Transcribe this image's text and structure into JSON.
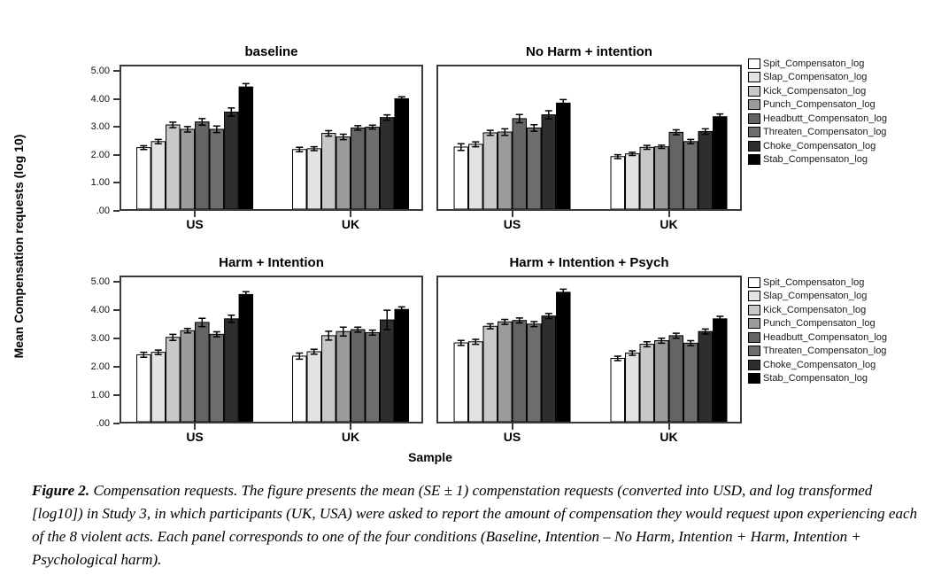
{
  "figure": {
    "y_axis_label": "Mean Compensation requests (log 10)",
    "x_axis_label": "Sample",
    "y_ticks": [
      "5.00",
      "4.00",
      "3.00",
      "2.00",
      "1.00",
      ".00"
    ],
    "groups": [
      "US",
      "UK"
    ],
    "legend": {
      "items": [
        {
          "label": "Spit_Compensaton_log",
          "color": "#ffffff"
        },
        {
          "label": "Slap_Compensaton_log",
          "color": "#e3e3e3"
        },
        {
          "label": "Kick_Compensaton_log",
          "color": "#c8c8c8"
        },
        {
          "label": "Punch_Compensaton_log",
          "color": "#9b9b9b"
        },
        {
          "label": "Headbutt_Compensaton_log",
          "color": "#646464"
        },
        {
          "label": "Threaten_Compensaton_log",
          "color": "#6e6e6e"
        },
        {
          "label": "Choke_Compensaton_log",
          "color": "#2e2e2e"
        },
        {
          "label": "Stab_Compensaton_log",
          "color": "#000000"
        }
      ]
    }
  },
  "chart_data": [
    {
      "type": "bar",
      "title": "baseline",
      "categories": [
        "US",
        "UK"
      ],
      "ylabel": "Mean Compensation requests (log 10)",
      "ylim": [
        0,
        5
      ],
      "yticks": [
        0,
        1,
        2,
        3,
        4,
        5
      ],
      "error_bars": "SE ± 1",
      "series": [
        {
          "name": "Spit_Compensaton_log",
          "values": [
            2.25,
            2.18
          ],
          "se": [
            0.07,
            0.08
          ]
        },
        {
          "name": "Slap_Compensaton_log",
          "values": [
            2.47,
            2.21
          ],
          "se": [
            0.08,
            0.07
          ]
        },
        {
          "name": "Kick_Compensaton_log",
          "values": [
            3.08,
            2.77
          ],
          "se": [
            0.1,
            0.1
          ]
        },
        {
          "name": "Punch_Compensaton_log",
          "values": [
            2.92,
            2.64
          ],
          "se": [
            0.1,
            0.1
          ]
        },
        {
          "name": "Headbutt_Compensaton_log",
          "values": [
            3.19,
            2.97
          ],
          "se": [
            0.12,
            0.08
          ]
        },
        {
          "name": "Threaten_Compensaton_log",
          "values": [
            2.92,
            3.0
          ],
          "se": [
            0.12,
            0.07
          ]
        },
        {
          "name": "Choke_Compensaton_log",
          "values": [
            3.55,
            3.35
          ],
          "se": [
            0.15,
            0.1
          ]
        },
        {
          "name": "Stab_Compensaton_log",
          "values": [
            4.47,
            4.04
          ],
          "se": [
            0.12,
            0.07
          ]
        }
      ]
    },
    {
      "type": "bar",
      "title": "No Harm + intention",
      "categories": [
        "US",
        "UK"
      ],
      "ylabel": "Mean Compensation requests (log 10)",
      "ylim": [
        0,
        5
      ],
      "yticks": [
        0,
        1,
        2,
        3,
        4,
        5
      ],
      "error_bars": "SE ± 1",
      "series": [
        {
          "name": "Spit_Compensaton_log",
          "values": [
            2.27,
            1.92
          ],
          "se": [
            0.12,
            0.07
          ]
        },
        {
          "name": "Slap_Compensaton_log",
          "values": [
            2.37,
            2.02
          ],
          "se": [
            0.09,
            0.06
          ]
        },
        {
          "name": "Kick_Compensaton_log",
          "values": [
            2.79,
            2.26
          ],
          "se": [
            0.09,
            0.07
          ]
        },
        {
          "name": "Punch_Compensaton_log",
          "values": [
            2.82,
            2.28
          ],
          "se": [
            0.12,
            0.06
          ]
        },
        {
          "name": "Headbutt_Compensaton_log",
          "values": [
            3.31,
            2.81
          ],
          "se": [
            0.15,
            0.09
          ]
        },
        {
          "name": "Threaten_Compensaton_log",
          "values": [
            2.97,
            2.47
          ],
          "se": [
            0.12,
            0.08
          ]
        },
        {
          "name": "Choke_Compensaton_log",
          "values": [
            3.45,
            2.84
          ],
          "se": [
            0.15,
            0.1
          ]
        },
        {
          "name": "Stab_Compensaton_log",
          "values": [
            3.88,
            3.38
          ],
          "se": [
            0.13,
            0.1
          ]
        }
      ]
    },
    {
      "type": "bar",
      "title": "Harm + Intention",
      "categories": [
        "US",
        "UK"
      ],
      "ylabel": "Mean Compensation requests (log 10)",
      "ylim": [
        0,
        5
      ],
      "yticks": [
        0,
        1,
        2,
        3,
        4,
        5
      ],
      "error_bars": "SE ± 1",
      "series": [
        {
          "name": "Spit_Compensaton_log",
          "values": [
            2.42,
            2.37
          ],
          "se": [
            0.09,
            0.11
          ]
        },
        {
          "name": "Slap_Compensaton_log",
          "values": [
            2.51,
            2.53
          ],
          "se": [
            0.08,
            0.09
          ]
        },
        {
          "name": "Kick_Compensaton_log",
          "values": [
            3.05,
            3.11
          ],
          "se": [
            0.11,
            0.16
          ]
        },
        {
          "name": "Punch_Compensaton_log",
          "values": [
            3.29,
            3.26
          ],
          "se": [
            0.08,
            0.16
          ]
        },
        {
          "name": "Headbutt_Compensaton_log",
          "values": [
            3.59,
            3.33
          ],
          "se": [
            0.15,
            0.09
          ]
        },
        {
          "name": "Threaten_Compensaton_log",
          "values": [
            3.16,
            3.22
          ],
          "se": [
            0.09,
            0.09
          ]
        },
        {
          "name": "Choke_Compensaton_log",
          "values": [
            3.72,
            3.68
          ],
          "se": [
            0.13,
            0.35
          ]
        },
        {
          "name": "Stab_Compensaton_log",
          "values": [
            4.6,
            4.06
          ],
          "se": [
            0.1,
            0.09
          ]
        }
      ]
    },
    {
      "type": "bar",
      "title": "Harm + Intention + Psych",
      "categories": [
        "US",
        "UK"
      ],
      "ylabel": "Mean Compensation requests (log 10)",
      "ylim": [
        0,
        5
      ],
      "yticks": [
        0,
        1,
        2,
        3,
        4,
        5
      ],
      "error_bars": "SE ± 1",
      "series": [
        {
          "name": "Spit_Compensaton_log",
          "values": [
            2.85,
            2.29
          ],
          "se": [
            0.09,
            0.08
          ]
        },
        {
          "name": "Slap_Compensaton_log",
          "values": [
            2.89,
            2.48
          ],
          "se": [
            0.09,
            0.08
          ]
        },
        {
          "name": "Kick_Compensaton_log",
          "values": [
            3.45,
            2.8
          ],
          "se": [
            0.09,
            0.09
          ]
        },
        {
          "name": "Punch_Compensaton_log",
          "values": [
            3.61,
            2.93
          ],
          "se": [
            0.09,
            0.09
          ]
        },
        {
          "name": "Headbutt_Compensaton_log",
          "values": [
            3.66,
            3.11
          ],
          "se": [
            0.09,
            0.09
          ]
        },
        {
          "name": "Threaten_Compensaton_log",
          "values": [
            3.53,
            2.84
          ],
          "se": [
            0.09,
            0.09
          ]
        },
        {
          "name": "Choke_Compensaton_log",
          "values": [
            3.82,
            3.26
          ],
          "se": [
            0.09,
            0.09
          ]
        },
        {
          "name": "Stab_Compensaton_log",
          "values": [
            4.68,
            3.72
          ],
          "se": [
            0.11,
            0.09
          ]
        }
      ]
    }
  ],
  "caption": {
    "label": "Figure 2.",
    "text": " Compensation requests. The figure presents the mean (SE ± 1) compenstation requests (converted into USD, and log transformed [log10]) in Study 3, in which participants (UK, USA) were asked to report the amount of compensation they would request upon experiencing each of the 8 violent acts. Each panel corresponds to one of the four conditions (Baseline, Intention – No Harm, Intention + Harm, Intention + Psychological harm)."
  }
}
